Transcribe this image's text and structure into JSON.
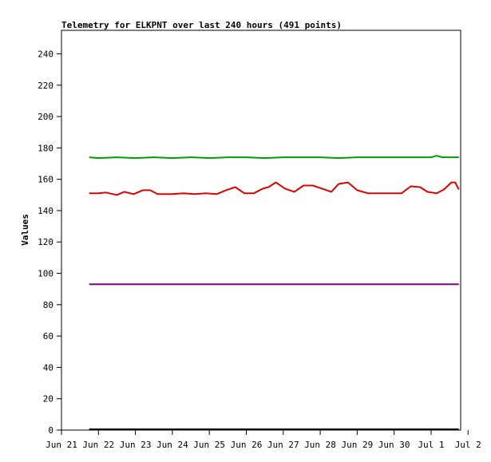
{
  "chart_data": {
    "type": "line",
    "title": "Telemetry for ELKPNT over last 240 hours (491 points)",
    "xlabel": "",
    "ylabel": "Values",
    "ylim": [
      0,
      255
    ],
    "yticks": [
      0,
      20,
      40,
      60,
      80,
      100,
      120,
      140,
      160,
      180,
      200,
      220,
      240
    ],
    "xlim_days": [
      0,
      10.8
    ],
    "xtick_labels": [
      "Jun 21",
      "Jun 22",
      "Jun 23",
      "Jun 24",
      "Jun 25",
      "Jun 26",
      "Jun 27",
      "Jun 28",
      "Jun 29",
      "Jun 30",
      "Jul 1",
      "Jul 2"
    ],
    "grid": false,
    "legend": "none",
    "series": [
      {
        "color": "#00a000",
        "x_days": [
          0.75,
          1.0,
          1.5,
          2.0,
          2.5,
          3.0,
          3.5,
          4.0,
          4.5,
          5.0,
          5.5,
          6.0,
          6.5,
          7.0,
          7.5,
          8.0,
          8.5,
          9.0,
          9.5,
          10.0,
          10.15,
          10.3,
          10.5,
          10.75
        ],
        "values": [
          174,
          173.5,
          174,
          173.5,
          174,
          173.5,
          174,
          173.5,
          174,
          174,
          173.5,
          174,
          174,
          174,
          173.5,
          174,
          174,
          174,
          174,
          174,
          175,
          174,
          174,
          174
        ]
      },
      {
        "color": "#e00000",
        "x_days": [
          0.75,
          1.0,
          1.2,
          1.5,
          1.7,
          1.95,
          2.2,
          2.4,
          2.6,
          3.0,
          3.3,
          3.6,
          3.9,
          4.2,
          4.45,
          4.7,
          4.95,
          5.2,
          5.45,
          5.6,
          5.8,
          6.05,
          6.3,
          6.55,
          6.8,
          7.05,
          7.3,
          7.5,
          7.75,
          8.0,
          8.3,
          8.6,
          9.0,
          9.2,
          9.45,
          9.7,
          9.9,
          10.15,
          10.35,
          10.55,
          10.65,
          10.75
        ],
        "values": [
          151,
          151,
          151.5,
          150,
          152,
          150.5,
          153,
          153,
          150.5,
          150.5,
          151,
          150.5,
          151,
          150.5,
          153,
          155,
          151,
          151,
          154,
          155,
          158,
          154,
          152,
          156,
          156,
          154,
          152,
          157,
          158,
          153,
          151,
          151,
          151,
          151,
          155.5,
          155,
          152,
          151,
          153.5,
          158,
          158,
          153.5
        ]
      },
      {
        "color": "#800080",
        "x_days": [
          0.75,
          10.75
        ],
        "values": [
          93,
          93
        ]
      },
      {
        "color": "#000000",
        "x_days": [
          0.75,
          10.75
        ],
        "values": [
          0.5,
          0.5
        ]
      }
    ]
  }
}
